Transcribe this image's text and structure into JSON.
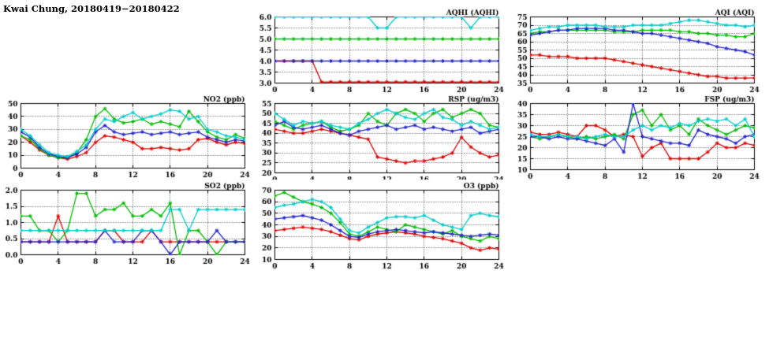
{
  "page_title": "Kwai Chung, 20180419−20180422",
  "colors": {
    "red": "#dd0000",
    "green": "#00bb00",
    "blue": "#2222cc",
    "cyan": "#00cccc"
  },
  "chart_data": [
    {
      "id": "aqhi",
      "type": "line",
      "title": "AQHI (AQHI)",
      "xlim": [
        0,
        24
      ],
      "xticks": [
        0,
        4,
        8,
        12,
        16,
        20,
        24
      ],
      "xtick_labels": [
        "0",
        "4",
        "8",
        "12",
        "16",
        "20",
        "24"
      ],
      "ylim": [
        3,
        6
      ],
      "yticks": [
        3.0,
        3.5,
        4.0,
        4.5,
        5.0,
        5.5,
        6.0
      ],
      "ytick_labels": [
        "3.0",
        "3.5",
        "4.0",
        "4.5",
        "5.0",
        "5.5",
        "6.0"
      ],
      "grid": true,
      "legend": "none",
      "series": [
        {
          "name": "series-red",
          "color": "red",
          "values": [
            4,
            4,
            4,
            4,
            4,
            3.05,
            3.05,
            3.05,
            3.05,
            3.05,
            3.05,
            3.05,
            3.05,
            3.05,
            3.05,
            3.05,
            3.05,
            3.05,
            3.05,
            3.05,
            3.05,
            3.05,
            3.05,
            3.05,
            3.05
          ]
        },
        {
          "name": "series-green",
          "color": "green",
          "values": [
            5,
            5,
            5,
            5,
            5,
            5,
            5,
            5,
            5,
            5,
            5,
            5,
            5,
            5,
            5,
            5,
            5,
            5,
            5,
            5,
            5,
            5,
            5,
            5,
            5
          ]
        },
        {
          "name": "series-blue",
          "color": "blue",
          "values": [
            4,
            4,
            4,
            4,
            4,
            4,
            4,
            4,
            4,
            4,
            4,
            4,
            4,
            4,
            4,
            4,
            4,
            4,
            4,
            4,
            4,
            4,
            4,
            4,
            4
          ]
        },
        {
          "name": "series-cyan",
          "color": "cyan",
          "values": [
            6,
            6,
            6,
            6,
            6,
            6,
            6,
            6,
            6,
            6,
            6,
            5.5,
            5.5,
            6,
            6,
            6,
            6,
            6,
            6,
            6,
            6,
            5.5,
            6,
            6,
            6
          ]
        }
      ]
    },
    {
      "id": "aqi",
      "type": "line",
      "title": "AQI (AQI)",
      "xlim": [
        0,
        24
      ],
      "xticks": [
        0,
        4,
        8,
        12,
        16,
        20,
        24
      ],
      "xtick_labels": [
        "0",
        "4",
        "8",
        "12",
        "16",
        "20",
        "24"
      ],
      "ylim": [
        35,
        75
      ],
      "yticks": [
        35,
        40,
        45,
        50,
        55,
        60,
        65,
        70,
        75
      ],
      "ytick_labels": [
        "35",
        "40",
        "45",
        "50",
        "55",
        "60",
        "65",
        "70",
        "75"
      ],
      "grid": true,
      "legend": "none",
      "series": [
        {
          "name": "series-red",
          "color": "red",
          "values": [
            52,
            52,
            51,
            51,
            51,
            50,
            50,
            50,
            50,
            49,
            48,
            47,
            46,
            45,
            44,
            43,
            42,
            41,
            40,
            39,
            39,
            38,
            38,
            38,
            38
          ]
        },
        {
          "name": "series-green",
          "color": "green",
          "values": [
            65,
            66,
            66,
            67,
            67,
            67,
            67,
            67,
            67,
            66,
            66,
            66,
            67,
            67,
            67,
            67,
            66,
            66,
            65,
            65,
            64,
            64,
            63,
            63,
            65
          ]
        },
        {
          "name": "series-blue",
          "color": "blue",
          "values": [
            64,
            65,
            66,
            67,
            67,
            68,
            68,
            68,
            68,
            67,
            67,
            66,
            65,
            65,
            64,
            63,
            62,
            61,
            60,
            59,
            57,
            56,
            55,
            54,
            52
          ]
        },
        {
          "name": "series-cyan",
          "color": "cyan",
          "values": [
            67,
            68,
            69,
            69,
            70,
            70,
            70,
            70,
            69,
            69,
            69,
            70,
            70,
            70,
            70,
            71,
            72,
            73,
            73,
            72,
            71,
            70,
            70,
            69,
            70
          ]
        }
      ]
    },
    {
      "id": "no2",
      "type": "line",
      "title": "NO2 (ppb)",
      "xlim": [
        0,
        24
      ],
      "xticks": [
        0,
        4,
        8,
        12,
        16,
        20,
        24
      ],
      "xtick_labels": [
        "0",
        "4",
        "8",
        "12",
        "16",
        "20",
        "24"
      ],
      "ylim": [
        0,
        50
      ],
      "yticks": [
        0,
        10,
        20,
        30,
        40,
        50
      ],
      "ytick_labels": [
        "0",
        "10",
        "20",
        "30",
        "40",
        "50"
      ],
      "grid": true,
      "legend": "none",
      "series": [
        {
          "name": "series-red",
          "color": "red",
          "values": [
            25,
            20,
            14,
            10,
            8,
            7,
            9,
            12,
            20,
            25,
            24,
            22,
            20,
            15,
            15,
            16,
            15,
            14,
            15,
            22,
            23,
            20,
            18,
            20,
            19
          ]
        },
        {
          "name": "series-green",
          "color": "green",
          "values": [
            25,
            22,
            15,
            10,
            8,
            8,
            12,
            22,
            40,
            46,
            38,
            35,
            36,
            38,
            34,
            36,
            34,
            32,
            44,
            36,
            28,
            24,
            22,
            26,
            23
          ]
        },
        {
          "name": "series-blue",
          "color": "blue",
          "values": [
            28,
            24,
            16,
            11,
            9,
            8,
            11,
            16,
            28,
            33,
            28,
            26,
            27,
            28,
            26,
            27,
            28,
            26,
            27,
            28,
            24,
            22,
            20,
            22,
            21
          ]
        },
        {
          "name": "series-cyan",
          "color": "cyan",
          "values": [
            30,
            25,
            18,
            12,
            10,
            9,
            13,
            18,
            30,
            38,
            36,
            40,
            43,
            38,
            40,
            42,
            45,
            44,
            38,
            40,
            30,
            28,
            25,
            24,
            22
          ]
        }
      ]
    },
    {
      "id": "rsp",
      "type": "line",
      "title": "RSP (ug/m3)",
      "xlim": [
        0,
        24
      ],
      "xticks": [
        0,
        4,
        8,
        12,
        16,
        20,
        24
      ],
      "xtick_labels": [
        "0",
        "4",
        "8",
        "12",
        "16",
        "20",
        "24"
      ],
      "ylim": [
        20,
        55
      ],
      "yticks": [
        20,
        25,
        30,
        35,
        40,
        45,
        50,
        55
      ],
      "ytick_labels": [
        "20",
        "25",
        "30",
        "35",
        "40",
        "45",
        "50",
        "55"
      ],
      "grid": true,
      "legend": "none",
      "series": [
        {
          "name": "series-red",
          "color": "red",
          "values": [
            42,
            41,
            40,
            40,
            41,
            42,
            41,
            40,
            39,
            38,
            37,
            28,
            27,
            26,
            25,
            26,
            26,
            27,
            28,
            30,
            38,
            33,
            30,
            28,
            29
          ]
        },
        {
          "name": "series-green",
          "color": "green",
          "values": [
            46,
            44,
            42,
            44,
            45,
            46,
            43,
            41,
            42,
            44,
            50,
            46,
            44,
            50,
            52,
            50,
            46,
            50,
            52,
            48,
            50,
            52,
            50,
            44,
            43
          ]
        },
        {
          "name": "series-blue",
          "color": "blue",
          "values": [
            44,
            46,
            43,
            42,
            43,
            44,
            42,
            40,
            39,
            41,
            42,
            43,
            44,
            42,
            43,
            44,
            42,
            43,
            42,
            41,
            42,
            43,
            40,
            41,
            42
          ]
        },
        {
          "name": "series-cyan",
          "color": "cyan",
          "values": [
            50,
            47,
            44,
            46,
            45,
            46,
            44,
            43,
            42,
            45,
            47,
            50,
            52,
            50,
            48,
            47,
            50,
            52,
            48,
            47,
            44,
            46,
            44,
            42,
            43
          ]
        }
      ]
    },
    {
      "id": "fsp",
      "type": "line",
      "title": "FSP (ug/m3)",
      "xlim": [
        0,
        24
      ],
      "xticks": [
        0,
        4,
        8,
        12,
        16,
        20,
        24
      ],
      "xtick_labels": [
        "0",
        "4",
        "8",
        "12",
        "16",
        "20",
        "24"
      ],
      "ylim": [
        10,
        40
      ],
      "yticks": [
        10,
        15,
        20,
        25,
        30,
        35,
        40
      ],
      "ytick_labels": [
        "10",
        "15",
        "20",
        "25",
        "30",
        "35",
        "40"
      ],
      "grid": true,
      "legend": "none",
      "series": [
        {
          "name": "series-red",
          "color": "red",
          "values": [
            27,
            26,
            26,
            27,
            26,
            25,
            30,
            30,
            28,
            25,
            26,
            25,
            16,
            20,
            22,
            15,
            15,
            15,
            15,
            18,
            22,
            20,
            20,
            22,
            21
          ]
        },
        {
          "name": "series-green",
          "color": "green",
          "values": [
            25,
            24,
            25,
            26,
            25,
            24,
            25,
            24,
            25,
            26,
            24,
            35,
            37,
            30,
            35,
            28,
            30,
            26,
            33,
            30,
            28,
            26,
            28,
            30,
            29
          ]
        },
        {
          "name": "series-blue",
          "color": "blue",
          "values": [
            25,
            25,
            24,
            25,
            24,
            24,
            23,
            22,
            21,
            24,
            18,
            40,
            25,
            24,
            23,
            22,
            22,
            21,
            28,
            26,
            25,
            24,
            22,
            25,
            26
          ]
        },
        {
          "name": "series-cyan",
          "color": "cyan",
          "values": [
            26,
            25,
            25,
            26,
            25,
            25,
            24,
            25,
            26,
            25,
            25,
            28,
            30,
            28,
            30,
            29,
            31,
            30,
            32,
            33,
            32,
            33,
            30,
            33,
            25
          ]
        }
      ]
    },
    {
      "id": "so2",
      "type": "line",
      "title": "SO2 (ppb)",
      "xlim": [
        0,
        24
      ],
      "xticks": [
        0,
        4,
        8,
        12,
        16,
        20,
        24
      ],
      "xtick_labels": [
        "0",
        "4",
        "8",
        "12",
        "16",
        "20",
        "24"
      ],
      "ylim": [
        0,
        2
      ],
      "yticks": [
        0.0,
        0.5,
        1.0,
        1.5,
        2.0
      ],
      "ytick_labels": [
        "0.0",
        "0.5",
        "1.0",
        "1.5",
        "2.0"
      ],
      "grid": true,
      "legend": "none",
      "series": [
        {
          "name": "series-red",
          "color": "red",
          "values": [
            0.4,
            0.4,
            0.4,
            0.4,
            1.2,
            0.4,
            0.4,
            0.4,
            0.4,
            0.75,
            0.75,
            0.4,
            0.4,
            0.4,
            0.75,
            0.4,
            0.4,
            0.4,
            0.4,
            0.4,
            0.4,
            0.4,
            0.4,
            0.4,
            0.4
          ]
        },
        {
          "name": "series-green",
          "color": "green",
          "values": [
            1.2,
            1.2,
            0.75,
            0.75,
            0.4,
            0.75,
            1.9,
            1.9,
            1.2,
            1.4,
            1.4,
            1.6,
            1.2,
            1.2,
            1.4,
            1.2,
            1.6,
            0,
            0.75,
            0.75,
            0.4,
            0,
            0.4,
            0.4,
            0.4
          ]
        },
        {
          "name": "series-blue",
          "color": "blue",
          "values": [
            0.4,
            0.4,
            0.4,
            0.4,
            0.4,
            0.4,
            0.4,
            0.4,
            0.4,
            0.75,
            0.4,
            0.4,
            0.4,
            0.75,
            0.75,
            0.4,
            0,
            0.4,
            0.4,
            0.4,
            0.4,
            0.75,
            0.4,
            0.4,
            0.4
          ]
        },
        {
          "name": "series-cyan",
          "color": "cyan",
          "values": [
            0.75,
            0.75,
            0.75,
            0.75,
            0.75,
            0.75,
            0.75,
            0.75,
            0.75,
            0.75,
            0.75,
            0.75,
            0.75,
            0.75,
            0.75,
            0.75,
            1.4,
            1.4,
            0.75,
            1.4,
            1.4,
            1.4,
            1.4,
            1.4,
            1.4
          ]
        }
      ]
    },
    {
      "id": "o3",
      "type": "line",
      "title": "O3 (ppb)",
      "xlim": [
        0,
        24
      ],
      "xticks": [
        0,
        4,
        8,
        12,
        16,
        20,
        24
      ],
      "xtick_labels": [
        "0",
        "4",
        "8",
        "12",
        "16",
        "20",
        "24"
      ],
      "ylim": [
        10,
        70
      ],
      "yticks": [
        10,
        20,
        30,
        40,
        50,
        60,
        70
      ],
      "ytick_labels": [
        "10",
        "20",
        "30",
        "40",
        "50",
        "60",
        "70"
      ],
      "grid": true,
      "legend": "none",
      "series": [
        {
          "name": "series-red",
          "color": "red",
          "values": [
            35,
            36,
            37,
            38,
            37,
            36,
            34,
            31,
            28,
            27,
            30,
            32,
            33,
            34,
            33,
            32,
            30,
            29,
            28,
            26,
            24,
            20,
            18,
            20,
            19
          ]
        },
        {
          "name": "series-green",
          "color": "green",
          "values": [
            65,
            68,
            64,
            60,
            58,
            55,
            50,
            42,
            32,
            30,
            34,
            38,
            36,
            34,
            40,
            38,
            36,
            34,
            32,
            35,
            30,
            28,
            26,
            30,
            28
          ]
        },
        {
          "name": "series-blue",
          "color": "blue",
          "values": [
            45,
            46,
            47,
            48,
            46,
            44,
            40,
            35,
            30,
            29,
            32,
            34,
            35,
            36,
            35,
            34,
            33,
            34,
            33,
            32,
            31,
            30,
            31,
            32,
            31
          ]
        },
        {
          "name": "series-cyan",
          "color": "cyan",
          "values": [
            55,
            57,
            58,
            60,
            62,
            60,
            55,
            45,
            35,
            33,
            38,
            42,
            46,
            47,
            47,
            46,
            48,
            44,
            40,
            38,
            36,
            48,
            50,
            48,
            47
          ]
        }
      ]
    }
  ]
}
